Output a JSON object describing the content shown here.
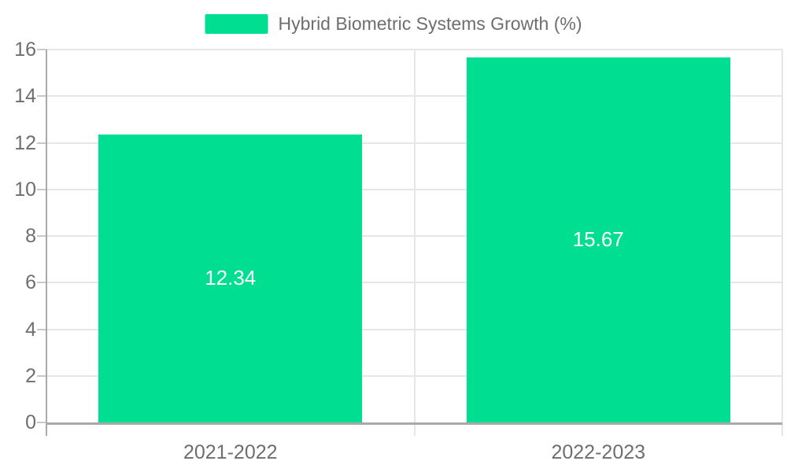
{
  "legend": {
    "label": "Hybrid Biometric Systems Growth (%)"
  },
  "chart_data": {
    "type": "bar",
    "title": "Hybrid Biometric Systems Growth (%)",
    "categories": [
      "2021-2022",
      "2022-2023"
    ],
    "values": [
      12.34,
      15.67
    ],
    "value_labels": [
      "12.34",
      "15.67"
    ],
    "series": [
      {
        "name": "Hybrid Biometric Systems Growth (%)",
        "values": [
          12.34,
          15.67
        ]
      }
    ],
    "xlabel": "",
    "ylabel": "",
    "ylim": [
      0,
      16
    ],
    "yticks": [
      0,
      2,
      4,
      6,
      8,
      10,
      12,
      14,
      16
    ],
    "grid": true,
    "legend_position": "top-center",
    "value_label_position": "inside-center",
    "bar_fraction": 0.717
  },
  "colors": {
    "bar": "#00DE91",
    "grid_line": "#E6E6E6",
    "axis_line": "#A9A9A9",
    "tick": "#C9C9C9",
    "label_text": "#6E6E6E",
    "value_label_text": "#FFFFFF",
    "background": "#FFFFFF"
  }
}
